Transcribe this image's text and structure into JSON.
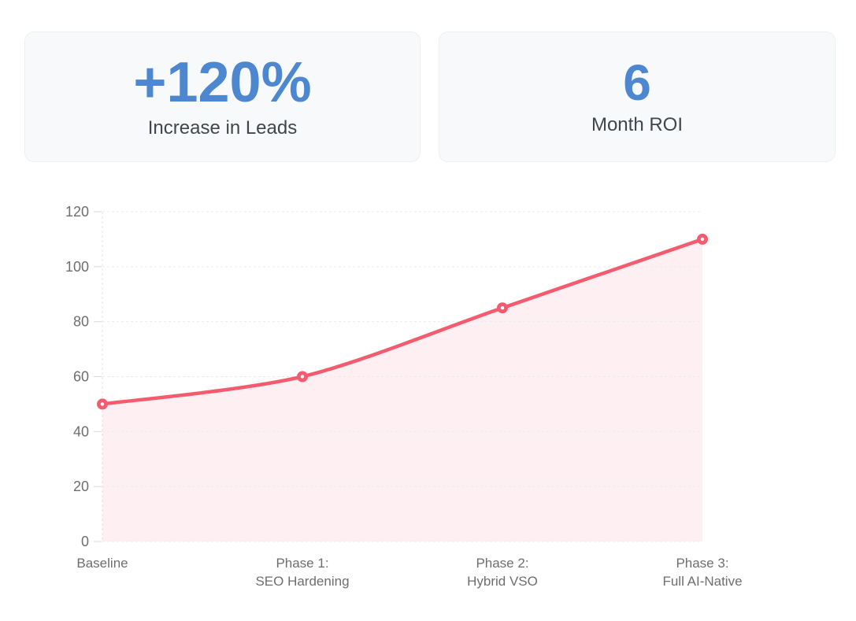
{
  "page": {
    "background": "#ffffff"
  },
  "stats": [
    {
      "value": "+120%",
      "label": "Increase in Leads",
      "value_color": "#4d87d0"
    },
    {
      "value": "6",
      "label": "Month ROI",
      "value_color": "#4d87d0"
    }
  ],
  "chart_data": {
    "type": "area",
    "title": "",
    "xlabel": "",
    "ylabel": "",
    "categories": [
      "Baseline",
      "Phase 1: SEO Hardening",
      "Phase 2: Hybrid VSO",
      "Phase 3: Full AI-Native"
    ],
    "category_lines": [
      [
        "Baseline"
      ],
      [
        "Phase 1:",
        "SEO Hardening"
      ],
      [
        "Phase 2:",
        "Hybrid VSO"
      ],
      [
        "Phase 3:",
        "Full AI-Native"
      ]
    ],
    "values": [
      50,
      60,
      85,
      110
    ],
    "ylim": [
      0,
      120
    ],
    "yticks": [
      0,
      20,
      40,
      60,
      80,
      100,
      120
    ],
    "grid": true,
    "legend": false,
    "line_color": "#f55b6e",
    "fill_color": "rgba(246, 91, 110, 0.09)",
    "grid_color": "#ebebeb",
    "axis_tick_color": "#d9d9d9",
    "axis_label_color": "#6e6e6e",
    "point_style": "donut"
  }
}
